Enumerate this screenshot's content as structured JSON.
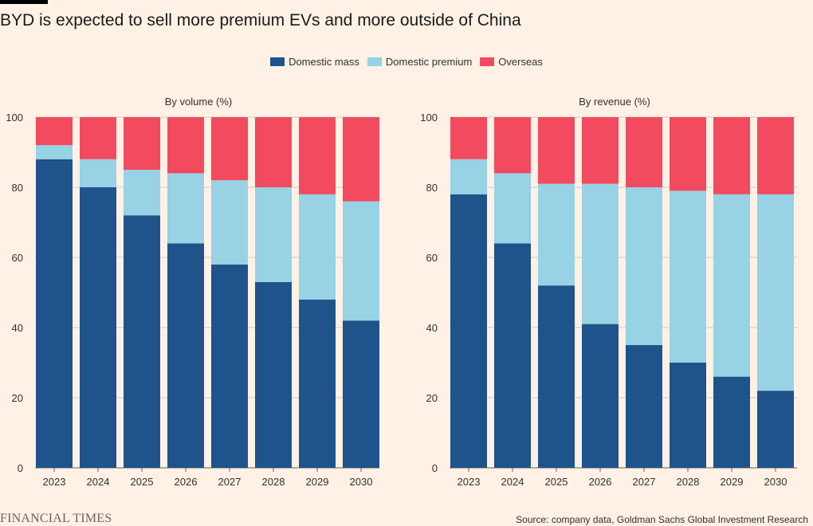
{
  "header": {
    "title": "BYD is expected to sell more premium EVs and more outside of China"
  },
  "legend": [
    {
      "label": "Domestic mass",
      "color": "#1F538B"
    },
    {
      "label": "Domestic premium",
      "color": "#97D2E5"
    },
    {
      "label": "Overseas",
      "color": "#F24A5E"
    }
  ],
  "footer": {
    "brand": "FINANCIAL TIMES",
    "source": "Source: company data, Goldman Sachs Global Investment Research"
  },
  "chart_data": [
    {
      "type": "bar",
      "stacked": true,
      "title": "By volume (%)",
      "categories": [
        "2023",
        "2024",
        "2025",
        "2026",
        "2027",
        "2028",
        "2029",
        "2030"
      ],
      "ylim": [
        0,
        100
      ],
      "yticks": [
        "0",
        "20",
        "40",
        "60",
        "80",
        "100"
      ],
      "grid": true,
      "series": [
        {
          "name": "Domestic mass",
          "color": "#1F538B",
          "values": [
            88,
            80,
            72,
            64,
            58,
            53,
            48,
            42
          ]
        },
        {
          "name": "Domestic premium",
          "color": "#97D2E5",
          "values": [
            4,
            8,
            13,
            20,
            24,
            27,
            30,
            34
          ]
        },
        {
          "name": "Overseas",
          "color": "#F24A5E",
          "values": [
            8,
            12,
            15,
            16,
            18,
            20,
            22,
            24
          ]
        }
      ]
    },
    {
      "type": "bar",
      "stacked": true,
      "title": "By revenue (%)",
      "categories": [
        "2023",
        "2024",
        "2025",
        "2026",
        "2027",
        "2028",
        "2029",
        "2030"
      ],
      "ylim": [
        0,
        100
      ],
      "yticks": [
        "0",
        "20",
        "40",
        "60",
        "80",
        "100"
      ],
      "grid": true,
      "series": [
        {
          "name": "Domestic mass",
          "color": "#1F538B",
          "values": [
            78,
            64,
            52,
            41,
            35,
            30,
            26,
            22
          ]
        },
        {
          "name": "Domestic premium",
          "color": "#97D2E5",
          "values": [
            10,
            20,
            29,
            40,
            45,
            49,
            52,
            56
          ]
        },
        {
          "name": "Overseas",
          "color": "#F24A5E",
          "values": [
            12,
            16,
            19,
            19,
            20,
            21,
            22,
            22
          ]
        }
      ]
    }
  ]
}
